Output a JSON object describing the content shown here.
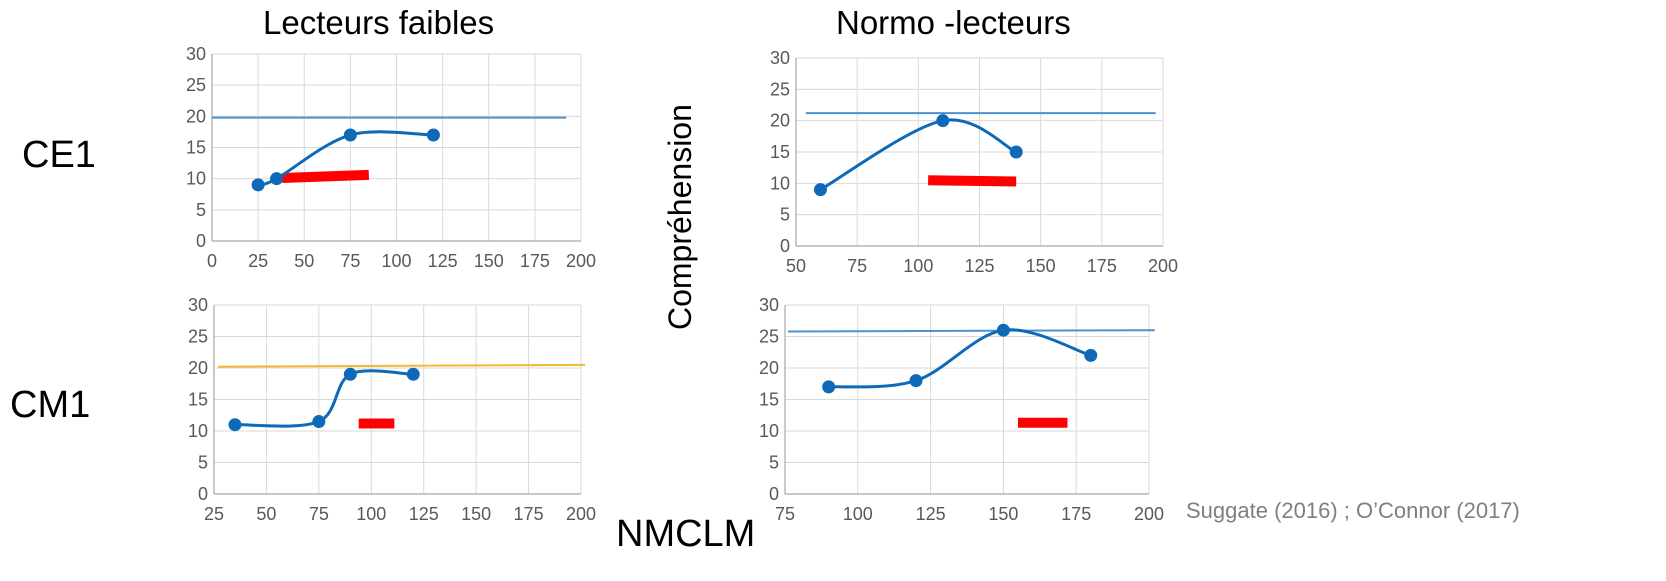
{
  "column_titles": [
    "Lecteurs faibles",
    "Normo -lecteurs"
  ],
  "row_labels": [
    "CE1",
    "CM1"
  ],
  "y_axis_label": "Compréhension",
  "x_axis_label": "NMCLM",
  "source": "Suggate (2016) ; O’Connor (2017)",
  "colors": {
    "series": "#0e6ab8",
    "threshold_blue": "#4f90cf",
    "threshold_orange": "#f5b82e",
    "bar": "#ff0000",
    "grid": "#d9d9d9",
    "tick_text": "#595959"
  },
  "chart_data": [
    {
      "id": "ce1-faibles",
      "type": "line",
      "title": "Lecteurs faibles",
      "row": "CE1",
      "xlim": [
        0,
        200
      ],
      "ylim": [
        0,
        30
      ],
      "x_ticks": [
        0,
        25,
        50,
        75,
        100,
        125,
        150,
        175,
        200
      ],
      "y_ticks": [
        0,
        5,
        10,
        15,
        20,
        25,
        30
      ],
      "grid": true,
      "series": [
        {
          "x": [
            25,
            35,
            75,
            120
          ],
          "y": [
            9,
            10,
            17,
            17
          ]
        }
      ],
      "threshold": {
        "x": [
          0,
          192
        ],
        "y": [
          19.8,
          19.8
        ],
        "color": "#4f90cf"
      },
      "bar": {
        "x": [
          38,
          85
        ],
        "y": [
          10.1,
          10.6
        ]
      }
    },
    {
      "id": "ce1-normo",
      "type": "line",
      "title": "Normo -lecteurs",
      "row": "CE1",
      "xlim": [
        50,
        200
      ],
      "ylim": [
        0,
        30
      ],
      "x_ticks": [
        50,
        75,
        100,
        125,
        150,
        175,
        200
      ],
      "y_ticks": [
        0,
        5,
        10,
        15,
        20,
        25,
        30
      ],
      "grid": true,
      "series": [
        {
          "x": [
            60,
            110,
            140
          ],
          "y": [
            9,
            20,
            15
          ]
        }
      ],
      "threshold": {
        "x": [
          54,
          197
        ],
        "y": [
          21.2,
          21.2
        ],
        "color": "#4f90cf"
      },
      "bar": {
        "x": [
          104,
          140
        ],
        "y": [
          10.5,
          10.3
        ]
      }
    },
    {
      "id": "cm1-faibles",
      "type": "line",
      "title": "",
      "row": "CM1",
      "xlim": [
        25,
        200
      ],
      "ylim": [
        0,
        30
      ],
      "x_ticks": [
        25,
        50,
        75,
        100,
        125,
        150,
        175,
        200
      ],
      "y_ticks": [
        0,
        5,
        10,
        15,
        20,
        25,
        30
      ],
      "grid": true,
      "series": [
        {
          "x": [
            35,
            75,
            90,
            120
          ],
          "y": [
            11,
            11.5,
            19,
            19
          ]
        }
      ],
      "threshold": {
        "x": [
          27,
          202
        ],
        "y": [
          20.2,
          20.5
        ],
        "color": "#f5b82e"
      },
      "bar": {
        "x": [
          94,
          111
        ],
        "y": [
          11.2,
          11.2
        ]
      }
    },
    {
      "id": "cm1-normo",
      "type": "line",
      "title": "",
      "row": "CM1",
      "xlim": [
        75,
        200
      ],
      "ylim": [
        0,
        30
      ],
      "x_ticks": [
        75,
        100,
        125,
        150,
        175,
        200
      ],
      "y_ticks": [
        0,
        5,
        10,
        15,
        20,
        25,
        30
      ],
      "grid": true,
      "series": [
        {
          "x": [
            90,
            120,
            150,
            180
          ],
          "y": [
            17,
            18,
            26,
            22
          ]
        }
      ],
      "threshold": {
        "x": [
          76,
          202
        ],
        "y": [
          25.8,
          26.0
        ],
        "color": "#4f90cf"
      },
      "bar": {
        "x": [
          155,
          172
        ],
        "y": [
          11.3,
          11.3
        ]
      }
    }
  ]
}
